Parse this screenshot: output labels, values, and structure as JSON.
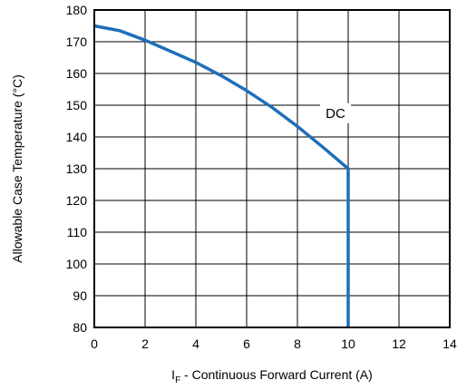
{
  "chart_data": {
    "type": "line",
    "xlabel_main": "I",
    "xlabel_sub": "F",
    "xlabel_rest": " - Continuous Forward Current (A)",
    "ylabel": "Allowable Case Temperature (°C)",
    "xlim": [
      0,
      14
    ],
    "ylim": [
      80,
      180
    ],
    "x_ticks": [
      0,
      2,
      4,
      6,
      8,
      10,
      12,
      14
    ],
    "y_ticks": [
      80,
      90,
      100,
      110,
      120,
      130,
      140,
      150,
      160,
      170,
      180
    ],
    "x_tick_labels": [
      "0",
      "2",
      "4",
      "6",
      "8",
      "10",
      "12",
      "14"
    ],
    "y_tick_labels": [
      "80",
      "90",
      "100",
      "110",
      "120",
      "130",
      "140",
      "150",
      "160",
      "170",
      "180"
    ],
    "grid": true,
    "series": [
      {
        "color": "#1f6fb8",
        "points": [
          [
            0,
            175
          ],
          [
            1,
            173.5
          ],
          [
            2,
            170.5
          ],
          [
            3,
            167
          ],
          [
            4,
            163.5
          ],
          [
            5,
            159.3
          ],
          [
            6,
            154.6
          ],
          [
            7,
            149.3
          ],
          [
            8,
            143.3
          ],
          [
            9,
            136.8
          ],
          [
            10,
            130
          ],
          [
            10,
            80
          ]
        ]
      }
    ],
    "annotations": [
      {
        "text": "DC",
        "x": 9.5,
        "y": 147.5
      }
    ]
  }
}
